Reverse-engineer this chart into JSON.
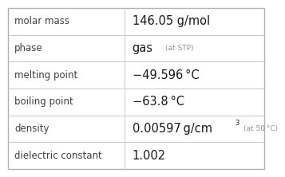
{
  "rows": [
    {
      "label": "molar mass",
      "value": "146.05 g/mol",
      "annotation": null,
      "superscript": null
    },
    {
      "label": "phase",
      "value": "gas",
      "annotation": "(at STP)",
      "superscript": null
    },
    {
      "label": "melting point",
      "value": "−49.596 °C",
      "annotation": null,
      "superscript": null
    },
    {
      "label": "boiling point",
      "value": "−63.8 °C",
      "annotation": null,
      "superscript": null
    },
    {
      "label": "density",
      "value": "0.00597 g/cm",
      "annotation": "(at 50 °C)",
      "superscript": "3"
    },
    {
      "label": "dielectric constant",
      "value": "1.002",
      "annotation": null,
      "superscript": null
    }
  ],
  "col_split": 0.455,
  "bg_color": "#ffffff",
  "outer_border_color": "#b0b0b0",
  "label_color": "#404040",
  "value_color": "#1a1a1a",
  "annotation_color": "#909090",
  "line_color": "#c8c8c8",
  "label_fontsize": 8.5,
  "value_fontsize": 10.5,
  "annotation_fontsize": 6.5,
  "superscript_fontsize": 6.0
}
